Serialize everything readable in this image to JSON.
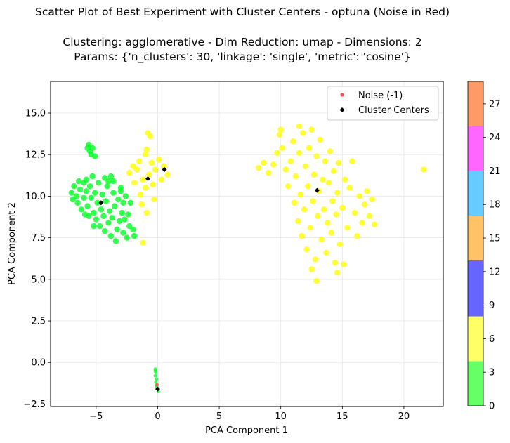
{
  "figure": {
    "title_line1": "Scatter Plot of Best Experiment with Cluster Centers - optuna (Noise in Red)",
    "title_line2": "Clustering: agglomerative - Dim Reduction: umap - Dimensions: 2",
    "title_line3": "Params: {'n_clusters': 30, 'linkage': 'single', 'metric': 'cosine'}"
  },
  "chart_data": {
    "type": "scatter",
    "title": "Scatter Plot of Best Experiment with Cluster Centers - optuna (Noise in Red)",
    "xlabel": "PCA Component 1",
    "ylabel": "PCA Component 2",
    "xlim": [
      -8.7,
      23.2
    ],
    "ylim": [
      -2.65,
      16.9
    ],
    "xticks": [
      -5,
      0,
      5,
      10,
      15,
      20
    ],
    "yticks": [
      -2.5,
      0.0,
      2.5,
      5.0,
      7.5,
      10.0,
      12.5,
      15.0
    ],
    "ytick_labels": [
      "−2.5",
      "0.0",
      "2.5",
      "5.0",
      "7.5",
      "10.0",
      "12.5",
      "15.0"
    ],
    "xtick_labels": [
      "−5",
      "0",
      "5",
      "10",
      "15",
      "20"
    ],
    "grid": true,
    "legend": {
      "placement": "top-right",
      "entries": [
        {
          "label": "Noise (-1)",
          "marker": "circle",
          "color": "#ff4d4d"
        },
        {
          "label": "Cluster Centers",
          "marker": "diamond",
          "color": "#000000"
        }
      ]
    },
    "colorbar": {
      "range": [
        0,
        29
      ],
      "ticks": [
        0,
        3,
        6,
        9,
        12,
        15,
        18,
        21,
        24,
        27
      ],
      "bands": [
        {
          "from": 0,
          "to": 4,
          "color": "#66ff66"
        },
        {
          "from": 4,
          "to": 8,
          "color": "#ffff66"
        },
        {
          "from": 8,
          "to": 13,
          "color": "#6666ff"
        },
        {
          "from": 13,
          "to": 17,
          "color": "#ffc266"
        },
        {
          "from": 17,
          "to": 21,
          "color": "#66ccff"
        },
        {
          "from": 21,
          "to": 25,
          "color": "#ff66ff"
        },
        {
          "from": 25,
          "to": 29,
          "color": "#ff9966"
        }
      ]
    },
    "clusters": [
      {
        "color": "#00ff22",
        "points": [
          [
            -7.0,
            10.2
          ],
          [
            -6.8,
            10.6
          ],
          [
            -6.6,
            10.0
          ],
          [
            -6.5,
            9.6
          ],
          [
            -6.3,
            10.4
          ],
          [
            -6.2,
            9.2
          ],
          [
            -6.0,
            10.8
          ],
          [
            -6.0,
            9.9
          ],
          [
            -5.8,
            10.3
          ],
          [
            -5.8,
            11.0
          ],
          [
            -5.7,
            9.4
          ],
          [
            -5.6,
            8.8
          ],
          [
            -5.5,
            10.6
          ],
          [
            -5.4,
            9.9
          ],
          [
            -5.3,
            11.2
          ],
          [
            -5.2,
            9.0
          ],
          [
            -5.1,
            10.2
          ],
          [
            -5.0,
            8.6
          ],
          [
            -4.9,
            9.6
          ],
          [
            -4.8,
            10.8
          ],
          [
            -4.7,
            8.2
          ],
          [
            -4.6,
            9.2
          ],
          [
            -4.5,
            10.1
          ],
          [
            -4.4,
            8.8
          ],
          [
            -4.3,
            7.9
          ],
          [
            -4.2,
            9.7
          ],
          [
            -4.1,
            10.6
          ],
          [
            -4.0,
            8.4
          ],
          [
            -3.9,
            9.1
          ],
          [
            -3.8,
            7.6
          ],
          [
            -3.7,
            8.7
          ],
          [
            -3.6,
            10.2
          ],
          [
            -3.5,
            9.4
          ],
          [
            -3.4,
            7.3
          ],
          [
            -3.3,
            8.0
          ],
          [
            -3.2,
            9.8
          ],
          [
            -3.1,
            8.5
          ],
          [
            -3.0,
            10.5
          ],
          [
            -2.9,
            9.0
          ],
          [
            -2.8,
            7.8
          ],
          [
            -2.7,
            8.6
          ],
          [
            -2.6,
            10.0
          ],
          [
            -2.5,
            7.5
          ],
          [
            -2.4,
            8.9
          ],
          [
            -2.3,
            8.2
          ],
          [
            -2.2,
            9.6
          ],
          [
            -2.0,
            8.0
          ],
          [
            -1.9,
            7.6
          ],
          [
            -4.3,
            11.1
          ],
          [
            -4.0,
            10.9
          ],
          [
            -3.8,
            11.2
          ],
          [
            -3.6,
            10.9
          ],
          [
            -6.4,
            10.9
          ],
          [
            -6.9,
            9.8
          ],
          [
            -5.9,
            8.9
          ],
          [
            -5.2,
            8.2
          ],
          [
            -5.7,
            12.9
          ],
          [
            -5.6,
            13.1
          ],
          [
            -5.5,
            12.7
          ],
          [
            -5.3,
            12.9
          ],
          [
            -5.4,
            12.5
          ],
          [
            -5.1,
            12.4
          ],
          [
            -3.0,
            10.3
          ],
          [
            -2.8,
            9.6
          ]
        ]
      },
      {
        "color": "#ffff00",
        "points": [
          [
            -2.3,
            11.4
          ],
          [
            -2.0,
            11.8
          ],
          [
            -1.9,
            10.8
          ],
          [
            -1.7,
            11.6
          ],
          [
            -1.5,
            12.1
          ],
          [
            -1.4,
            10.1
          ],
          [
            -1.3,
            9.5
          ],
          [
            -1.2,
            11.0
          ],
          [
            -1.0,
            10.5
          ],
          [
            -1.0,
            12.5
          ],
          [
            -0.9,
            9.0
          ],
          [
            -0.7,
            11.3
          ],
          [
            -0.6,
            13.6
          ],
          [
            -0.8,
            13.8
          ],
          [
            -0.5,
            12.0
          ],
          [
            -0.4,
            10.7
          ],
          [
            -0.3,
            9.8
          ],
          [
            -0.2,
            11.6
          ],
          [
            0.1,
            12.2
          ],
          [
            0.3,
            11.0
          ],
          [
            0.5,
            11.8
          ],
          [
            0.8,
            11.3
          ],
          [
            -1.2,
            7.2
          ],
          [
            -0.9,
            12.8
          ],
          [
            8.2,
            11.7
          ],
          [
            8.6,
            12.0
          ],
          [
            9.0,
            11.4
          ],
          [
            9.4,
            11.9
          ],
          [
            9.7,
            12.6
          ],
          [
            9.9,
            13.7
          ],
          [
            10.1,
            12.9
          ],
          [
            10.4,
            11.6
          ],
          [
            10.6,
            10.6
          ],
          [
            10.8,
            12.1
          ],
          [
            11.0,
            13.3
          ],
          [
            11.1,
            9.6
          ],
          [
            11.2,
            11.2
          ],
          [
            11.4,
            8.5
          ],
          [
            11.5,
            12.6
          ],
          [
            11.6,
            10.1
          ],
          [
            11.7,
            7.6
          ],
          [
            11.8,
            13.8
          ],
          [
            11.9,
            9.2
          ],
          [
            12.0,
            11.8
          ],
          [
            12.1,
            6.8
          ],
          [
            12.2,
            10.6
          ],
          [
            12.3,
            12.9
          ],
          [
            12.4,
            8.1
          ],
          [
            12.5,
            14.0
          ],
          [
            12.6,
            9.7
          ],
          [
            12.7,
            11.3
          ],
          [
            12.8,
            6.2
          ],
          [
            12.9,
            12.4
          ],
          [
            13.0,
            8.8
          ],
          [
            13.1,
            10.3
          ],
          [
            13.2,
            13.4
          ],
          [
            13.3,
            7.4
          ],
          [
            13.4,
            11.0
          ],
          [
            13.5,
            9.2
          ],
          [
            13.6,
            12.1
          ],
          [
            13.7,
            6.6
          ],
          [
            13.8,
            8.4
          ],
          [
            13.9,
            10.8
          ],
          [
            14.0,
            12.7
          ],
          [
            14.1,
            7.8
          ],
          [
            14.2,
            9.7
          ],
          [
            14.3,
            11.5
          ],
          [
            14.4,
            6.0
          ],
          [
            14.5,
            8.9
          ],
          [
            14.6,
            10.2
          ],
          [
            14.7,
            12.0
          ],
          [
            14.8,
            7.1
          ],
          [
            15.0,
            9.3
          ],
          [
            15.2,
            11.0
          ],
          [
            15.4,
            8.1
          ],
          [
            15.6,
            10.5
          ],
          [
            15.8,
            12.1
          ],
          [
            16.0,
            9.0
          ],
          [
            16.2,
            7.6
          ],
          [
            16.4,
            10.0
          ],
          [
            16.6,
            8.4
          ],
          [
            16.8,
            9.5
          ],
          [
            17.0,
            10.3
          ],
          [
            17.2,
            8.8
          ],
          [
            17.4,
            9.8
          ],
          [
            17.6,
            8.3
          ],
          [
            17.8,
            15.7
          ],
          [
            17.6,
            15.3
          ],
          [
            17.2,
            15.1
          ],
          [
            12.9,
            4.9
          ],
          [
            12.5,
            5.6
          ],
          [
            15.1,
            5.9
          ],
          [
            14.6,
            5.4
          ],
          [
            11.5,
            14.2
          ],
          [
            10.0,
            14.0
          ],
          [
            21.6,
            11.6
          ]
        ]
      }
    ],
    "noise_cluster_points": [
      [
        -0.2,
        -0.4
      ],
      [
        -0.15,
        -0.6
      ],
      [
        -0.2,
        -0.8
      ],
      [
        -0.1,
        -1.0
      ],
      [
        -0.15,
        -1.2
      ],
      [
        -0.1,
        -1.4
      ],
      [
        0.0,
        -1.6
      ],
      [
        0.05,
        -1.75
      ],
      [
        -0.05,
        -1.5
      ],
      [
        -0.2,
        -0.5
      ]
    ],
    "noise_points": [
      [
        -0.05,
        -1.35
      ]
    ],
    "cluster_centers": [
      [
        -4.6,
        9.6
      ],
      [
        -0.8,
        11.05
      ],
      [
        0.55,
        11.6
      ],
      [
        12.95,
        10.35
      ],
      [
        0.0,
        -1.6
      ]
    ]
  }
}
